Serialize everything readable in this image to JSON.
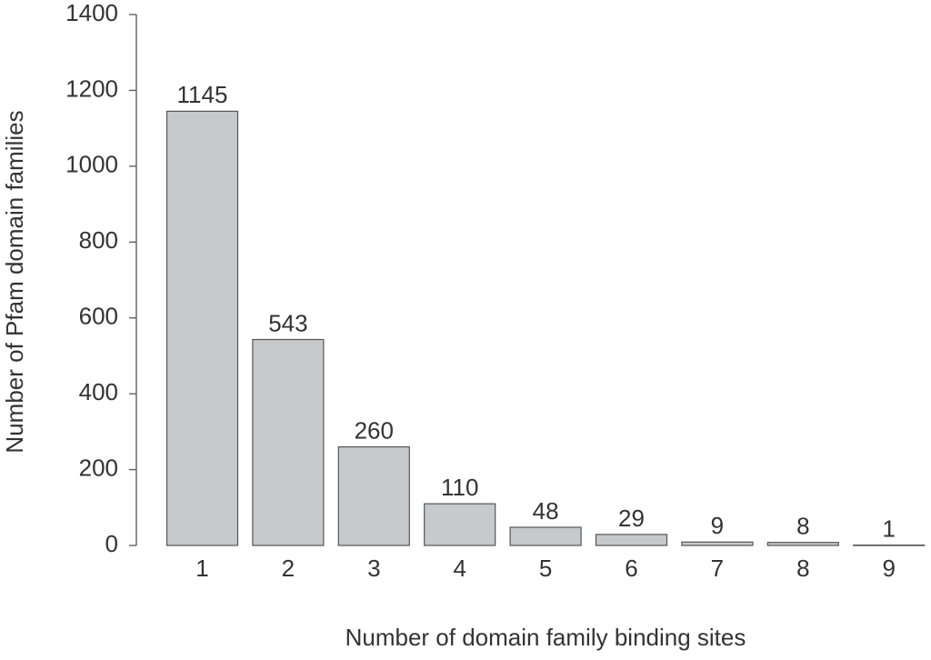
{
  "chart_data": {
    "type": "bar",
    "x_label": "Number of domain family binding sites",
    "y_label": "Number of Pfam domain families",
    "categories": [
      "1",
      "2",
      "3",
      "4",
      "5",
      "6",
      "7",
      "8",
      "9"
    ],
    "values": [
      1145,
      543,
      260,
      110,
      48,
      29,
      9,
      8,
      1
    ],
    "color": "#c8c9cb",
    "ylim": [
      0,
      1400
    ],
    "yticks": [
      0,
      200,
      400,
      600,
      800,
      1000,
      1200,
      1400
    ],
    "grid": false
  }
}
